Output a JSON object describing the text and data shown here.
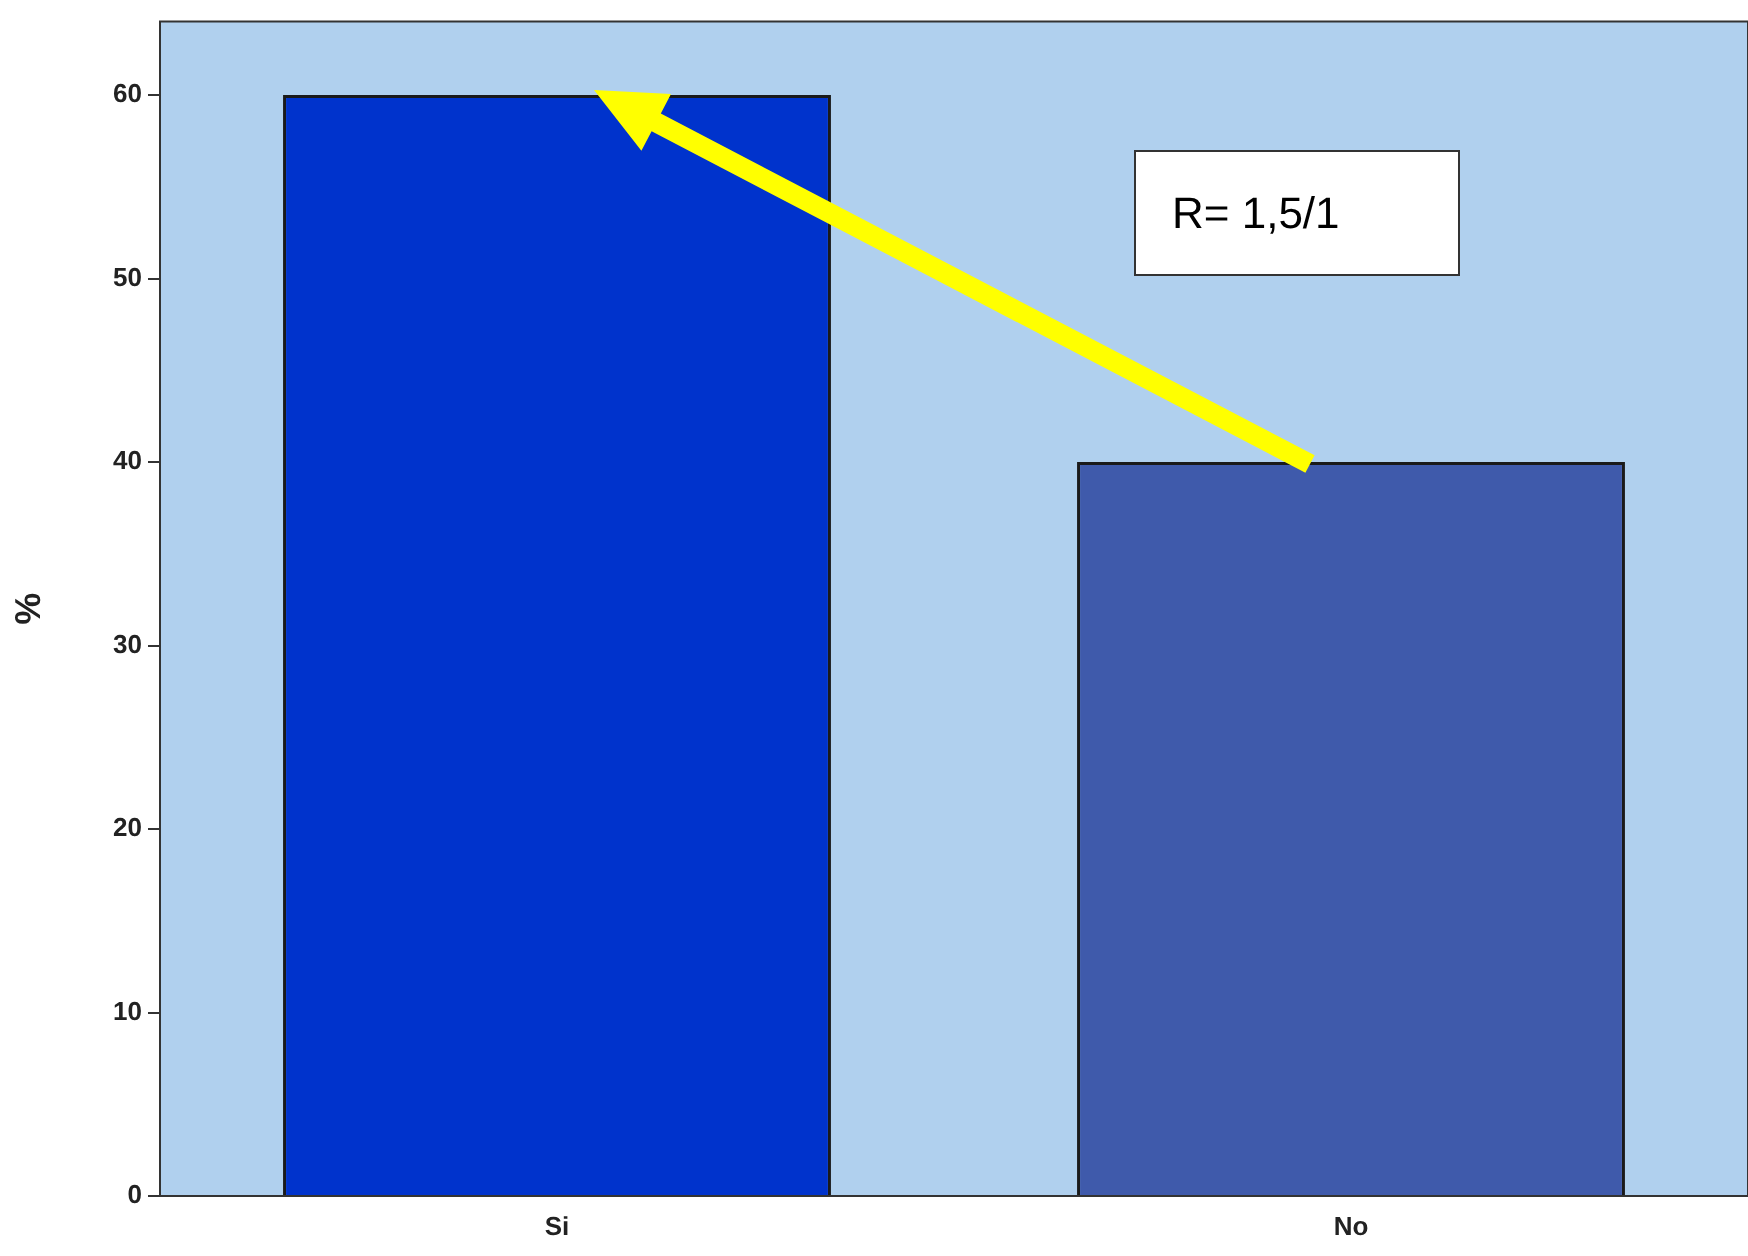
{
  "chart_data": {
    "type": "bar",
    "ylabel": "%",
    "categories": [
      "Si",
      "No"
    ],
    "colors": [
      "#0033cc",
      "#3f5aab"
    ],
    "values": [
      60,
      40
    ],
    "ylim": [
      0,
      64
    ],
    "yticks": [
      0,
      10,
      20,
      30,
      40,
      50,
      60
    ],
    "grid": false,
    "legend": false,
    "annotations": [
      "R= 1,5/1"
    ]
  }
}
